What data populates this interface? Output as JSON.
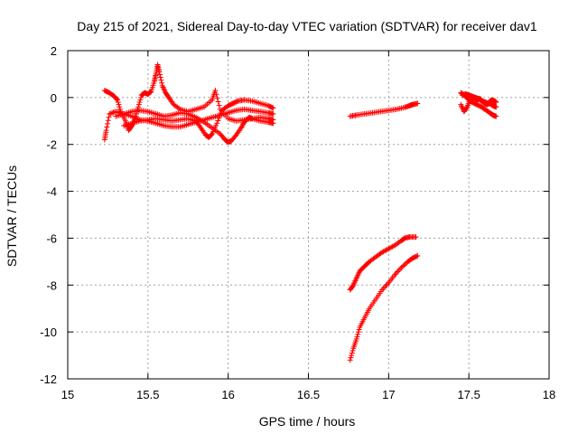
{
  "chart_data": {
    "type": "scatter",
    "title": "Day 215 of 2021, Sidereal Day-to-day VTEC variation (SDTVAR) for receiver dav1",
    "xlabel": "GPS time / hours",
    "ylabel": "SDTVAR / TECUs",
    "xlim": [
      15,
      18
    ],
    "ylim": [
      -12,
      2
    ],
    "xticks": [
      15,
      15.5,
      16,
      16.5,
      17,
      17.5,
      18
    ],
    "xtick_labels": [
      "15",
      "15.5",
      "16",
      "16.5",
      "17",
      "17.5",
      "18"
    ],
    "yticks": [
      2,
      0,
      -2,
      -4,
      -6,
      -8,
      -10,
      -12
    ],
    "ytick_labels": [
      "2",
      "0",
      "-2",
      "-4",
      "-6",
      "-8",
      "-10",
      "-12"
    ],
    "grid": true,
    "marker": "+",
    "color": "#ff0000",
    "series": [
      {
        "name": "satellite-track-a",
        "points": [
          [
            15.23,
            -1.8
          ],
          [
            15.24,
            -1.4
          ],
          [
            15.26,
            -0.7
          ],
          [
            15.3,
            -0.6
          ],
          [
            15.35,
            -0.7
          ],
          [
            15.4,
            -0.8
          ],
          [
            15.45,
            -0.95
          ],
          [
            15.5,
            -1.0
          ],
          [
            15.55,
            -1.1
          ],
          [
            15.6,
            -1.2
          ],
          [
            15.65,
            -1.25
          ],
          [
            15.7,
            -1.25
          ],
          [
            15.75,
            -1.15
          ],
          [
            15.8,
            -1.05
          ],
          [
            15.85,
            -0.95
          ],
          [
            15.9,
            -0.85
          ],
          [
            15.95,
            -0.75
          ],
          [
            16.0,
            -0.65
          ],
          [
            16.05,
            -0.55
          ],
          [
            16.1,
            -0.5
          ],
          [
            16.15,
            -0.55
          ],
          [
            16.2,
            -0.6
          ],
          [
            16.25,
            -0.65
          ],
          [
            16.28,
            -0.7
          ]
        ]
      },
      {
        "name": "satellite-track-b",
        "points": [
          [
            15.23,
            0.3
          ],
          [
            15.26,
            0.2
          ],
          [
            15.29,
            0.05
          ],
          [
            15.31,
            -0.1
          ],
          [
            15.33,
            -0.6
          ],
          [
            15.36,
            -1.0
          ],
          [
            15.38,
            -1.4
          ],
          [
            15.4,
            -1.2
          ],
          [
            15.42,
            -0.9
          ],
          [
            15.44,
            -0.4
          ],
          [
            15.46,
            0.1
          ],
          [
            15.48,
            0.2
          ],
          [
            15.5,
            0.15
          ],
          [
            15.52,
            0.25
          ],
          [
            15.54,
            0.7
          ],
          [
            15.55,
            1.0
          ],
          [
            15.56,
            1.4
          ],
          [
            15.57,
            1.1
          ],
          [
            15.59,
            0.5
          ],
          [
            15.61,
            0.2
          ],
          [
            15.63,
            0.0
          ],
          [
            15.66,
            -0.3
          ],
          [
            15.7,
            -0.5
          ],
          [
            15.75,
            -0.6
          ],
          [
            15.8,
            -0.5
          ],
          [
            15.85,
            -0.4
          ],
          [
            15.9,
            -0.1
          ],
          [
            15.92,
            0.3
          ],
          [
            15.95,
            -0.5
          ],
          [
            16.0,
            -0.9
          ],
          [
            16.05,
            -1.0
          ],
          [
            16.1,
            -0.95
          ],
          [
            16.15,
            -0.9
          ],
          [
            16.2,
            -0.85
          ],
          [
            16.25,
            -0.9
          ],
          [
            16.28,
            -0.95
          ]
        ]
      },
      {
        "name": "satellite-track-c",
        "points": [
          [
            15.3,
            -0.8
          ],
          [
            15.35,
            -0.7
          ],
          [
            15.4,
            -0.6
          ],
          [
            15.45,
            -0.55
          ],
          [
            15.5,
            -0.6
          ],
          [
            15.55,
            -0.7
          ],
          [
            15.6,
            -0.8
          ],
          [
            15.65,
            -0.75
          ],
          [
            15.7,
            -0.65
          ],
          [
            15.75,
            -0.7
          ],
          [
            15.8,
            -0.85
          ],
          [
            15.85,
            -1.05
          ],
          [
            15.9,
            -1.3
          ],
          [
            15.95,
            -1.55
          ],
          [
            15.98,
            -1.8
          ],
          [
            16.0,
            -1.9
          ],
          [
            16.02,
            -1.85
          ],
          [
            16.05,
            -1.6
          ],
          [
            16.08,
            -1.3
          ],
          [
            16.1,
            -1.05
          ],
          [
            16.13,
            -0.85
          ],
          [
            16.15,
            -0.9
          ],
          [
            16.2,
            -1.0
          ],
          [
            16.25,
            -1.05
          ],
          [
            16.28,
            -1.1
          ]
        ]
      },
      {
        "name": "satellite-track-d",
        "points": [
          [
            15.35,
            -1.2
          ],
          [
            15.4,
            -1.1
          ],
          [
            15.45,
            -1.0
          ],
          [
            15.5,
            -0.95
          ],
          [
            15.55,
            -0.9
          ],
          [
            15.6,
            -0.95
          ],
          [
            15.65,
            -1.0
          ],
          [
            15.7,
            -0.95
          ],
          [
            15.75,
            -0.9
          ],
          [
            15.8,
            -1.0
          ],
          [
            15.83,
            -1.3
          ],
          [
            15.86,
            -1.6
          ],
          [
            15.88,
            -1.7
          ],
          [
            15.9,
            -1.55
          ],
          [
            15.93,
            -1.1
          ],
          [
            15.96,
            -0.55
          ],
          [
            16.0,
            -0.35
          ],
          [
            16.03,
            -0.25
          ],
          [
            16.06,
            -0.15
          ],
          [
            16.1,
            -0.1
          ],
          [
            16.15,
            -0.15
          ],
          [
            16.2,
            -0.25
          ],
          [
            16.25,
            -0.35
          ],
          [
            16.28,
            -0.45
          ]
        ]
      },
      {
        "name": "satellite-track-e",
        "points": [
          [
            16.76,
            -0.8
          ],
          [
            16.8,
            -0.75
          ],
          [
            16.85,
            -0.7
          ],
          [
            16.9,
            -0.65
          ],
          [
            16.95,
            -0.6
          ],
          [
            17.0,
            -0.55
          ],
          [
            17.05,
            -0.5
          ],
          [
            17.1,
            -0.42
          ],
          [
            17.13,
            -0.35
          ],
          [
            17.15,
            -0.3
          ],
          [
            17.18,
            -0.25
          ]
        ]
      },
      {
        "name": "satellite-track-f",
        "points": [
          [
            16.76,
            -8.2
          ],
          [
            16.78,
            -8.0
          ],
          [
            16.8,
            -7.7
          ],
          [
            16.82,
            -7.4
          ],
          [
            16.85,
            -7.2
          ],
          [
            16.88,
            -7.0
          ],
          [
            16.92,
            -6.8
          ],
          [
            16.96,
            -6.6
          ],
          [
            17.0,
            -6.45
          ],
          [
            17.04,
            -6.3
          ],
          [
            17.08,
            -6.1
          ],
          [
            17.1,
            -6.0
          ],
          [
            17.13,
            -5.95
          ],
          [
            17.17,
            -5.95
          ]
        ]
      },
      {
        "name": "satellite-track-g",
        "points": [
          [
            16.76,
            -11.2
          ],
          [
            16.78,
            -10.7
          ],
          [
            16.8,
            -10.3
          ],
          [
            16.82,
            -9.8
          ],
          [
            16.85,
            -9.4
          ],
          [
            16.88,
            -9.0
          ],
          [
            16.92,
            -8.6
          ],
          [
            16.96,
            -8.2
          ],
          [
            17.0,
            -7.9
          ],
          [
            17.04,
            -7.55
          ],
          [
            17.08,
            -7.25
          ],
          [
            17.12,
            -7.0
          ],
          [
            17.15,
            -6.85
          ],
          [
            17.18,
            -6.75
          ]
        ]
      },
      {
        "name": "satellite-track-h",
        "points": [
          [
            17.45,
            0.2
          ],
          [
            17.47,
            0.1
          ],
          [
            17.5,
            -0.1
          ],
          [
            17.52,
            -0.2
          ],
          [
            17.55,
            -0.3
          ],
          [
            17.58,
            -0.4
          ],
          [
            17.6,
            -0.5
          ],
          [
            17.63,
            -0.65
          ],
          [
            17.65,
            -0.75
          ],
          [
            17.67,
            -0.8
          ]
        ]
      },
      {
        "name": "satellite-track-i",
        "points": [
          [
            17.45,
            -0.3
          ],
          [
            17.47,
            -0.6
          ],
          [
            17.49,
            -0.4
          ],
          [
            17.51,
            -0.05
          ],
          [
            17.53,
            0.0
          ],
          [
            17.55,
            -0.1
          ],
          [
            17.57,
            -0.05
          ],
          [
            17.59,
            -0.2
          ],
          [
            17.61,
            -0.3
          ],
          [
            17.63,
            -0.25
          ],
          [
            17.65,
            -0.35
          ],
          [
            17.67,
            -0.4
          ]
        ]
      },
      {
        "name": "satellite-track-j",
        "points": [
          [
            17.46,
            0.1
          ],
          [
            17.48,
            0.15
          ],
          [
            17.5,
            0.1
          ],
          [
            17.52,
            0.05
          ],
          [
            17.54,
            0.0
          ],
          [
            17.56,
            -0.05
          ],
          [
            17.58,
            -0.15
          ],
          [
            17.6,
            -0.2
          ],
          [
            17.62,
            -0.25
          ],
          [
            17.64,
            -0.1
          ],
          [
            17.66,
            -0.15
          ],
          [
            17.67,
            -0.2
          ]
        ]
      }
    ]
  }
}
